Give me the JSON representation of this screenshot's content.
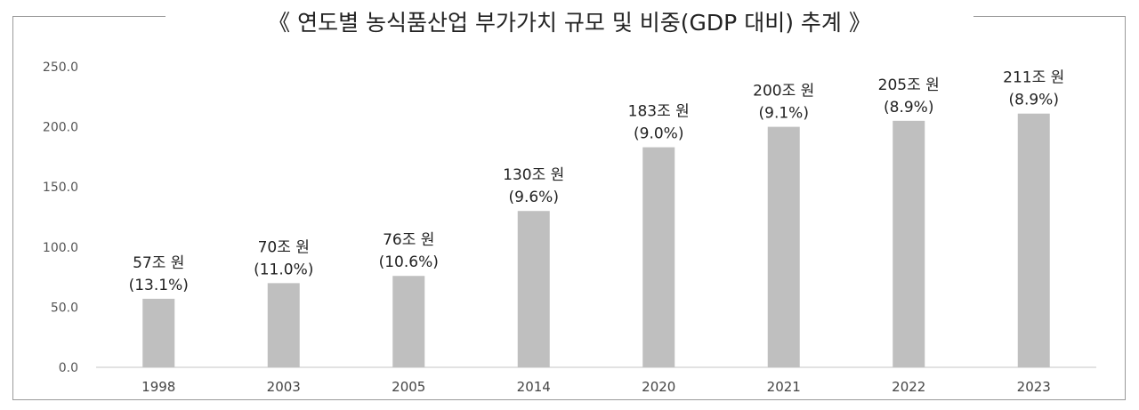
{
  "chart_data": {
    "type": "bar",
    "title": "《 연도별 농식품산업 부가가치 규모 및 비중(GDP 대비) 추계 》",
    "categories": [
      "1998",
      "2003",
      "2005",
      "2014",
      "2020",
      "2021",
      "2022",
      "2023"
    ],
    "values": [
      57,
      70,
      76,
      130,
      183,
      200,
      205,
      211
    ],
    "data_labels": [
      "57조 원",
      "70조 원",
      "76조 원",
      "130조 원",
      "183조 원",
      "200조 원",
      "205조 원",
      "211조 원"
    ],
    "share_labels": [
      "(13.1%)",
      "(11.0%)",
      "(10.6%)",
      "(9.6%)",
      "(9.0%)",
      "(9.1%)",
      "(8.9%)",
      "(8.9%)"
    ],
    "y_ticks": [
      "0.0",
      "50.0",
      "100.0",
      "150.0",
      "200.0",
      "250.0"
    ],
    "ylim": [
      0,
      250
    ],
    "grid": false,
    "bar_color": "#bfbfbf",
    "axis_color": "#d9d9d9"
  }
}
